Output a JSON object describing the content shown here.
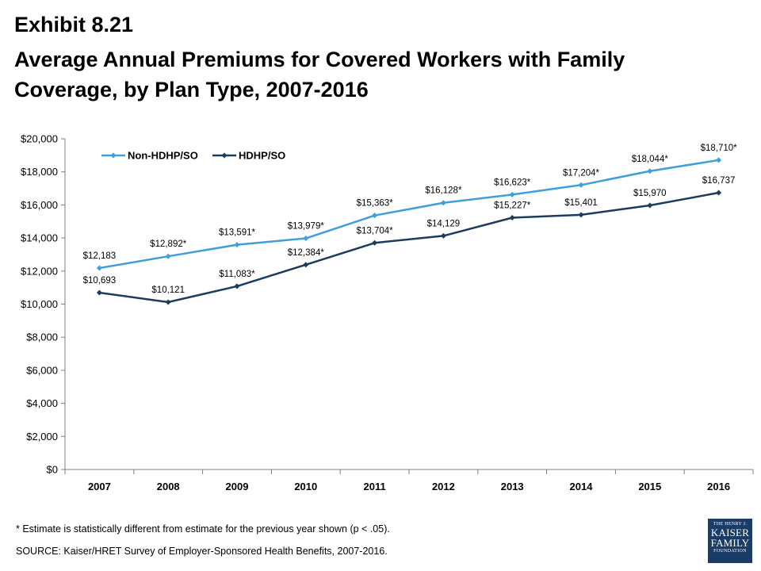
{
  "header": {
    "exhibit": "Exhibit 8.21",
    "title": "Average Annual Premiums for Covered Workers with Family Coverage, by Plan Type, 2007-2016"
  },
  "footnote": "* Estimate is statistically different from estimate for the previous year shown (p < .05).",
  "source": "SOURCE:  Kaiser/HRET Survey of Employer-Sponsored Health Benefits, 2007-2016.",
  "logo": {
    "line1": "THE HENRY J.",
    "line2": "KAISER",
    "line3": "FAMILY",
    "line4": "FOUNDATION"
  },
  "chart_data": {
    "type": "line",
    "categories": [
      "2007",
      "2008",
      "2009",
      "2010",
      "2011",
      "2012",
      "2013",
      "2014",
      "2015",
      "2016"
    ],
    "ylim": [
      0,
      20000
    ],
    "yticks": [
      0,
      2000,
      4000,
      6000,
      8000,
      10000,
      12000,
      14000,
      16000,
      18000,
      20000
    ],
    "ytick_labels": [
      "$0",
      "$2,000",
      "$4,000",
      "$6,000",
      "$8,000",
      "$10,000",
      "$12,000",
      "$14,000",
      "$16,000",
      "$18,000",
      "$20,000"
    ],
    "legend_position": "top-left",
    "grid": false,
    "series": [
      {
        "name": "Non-HDHP/SO",
        "color": "#3f9fdc",
        "values": [
          12183,
          12892,
          13591,
          13979,
          15363,
          16128,
          16623,
          17204,
          18044,
          18710
        ],
        "labels": [
          "$12,183",
          "$12,892*",
          "$13,591*",
          "$13,979*",
          "$15,363*",
          "$16,128*",
          "$16,623*",
          "$17,204*",
          "$18,044*",
          "$18,710*"
        ]
      },
      {
        "name": "HDHP/SO",
        "color": "#1b3c5e",
        "values": [
          10693,
          10121,
          11083,
          12384,
          13704,
          14129,
          15227,
          15401,
          15970,
          16737
        ],
        "labels": [
          "$10,693",
          "$10,121",
          "$11,083*",
          "$12,384*",
          "$13,704*",
          "$14,129",
          "$15,227*",
          "$15,401",
          "$15,970",
          "$16,737"
        ]
      }
    ]
  }
}
